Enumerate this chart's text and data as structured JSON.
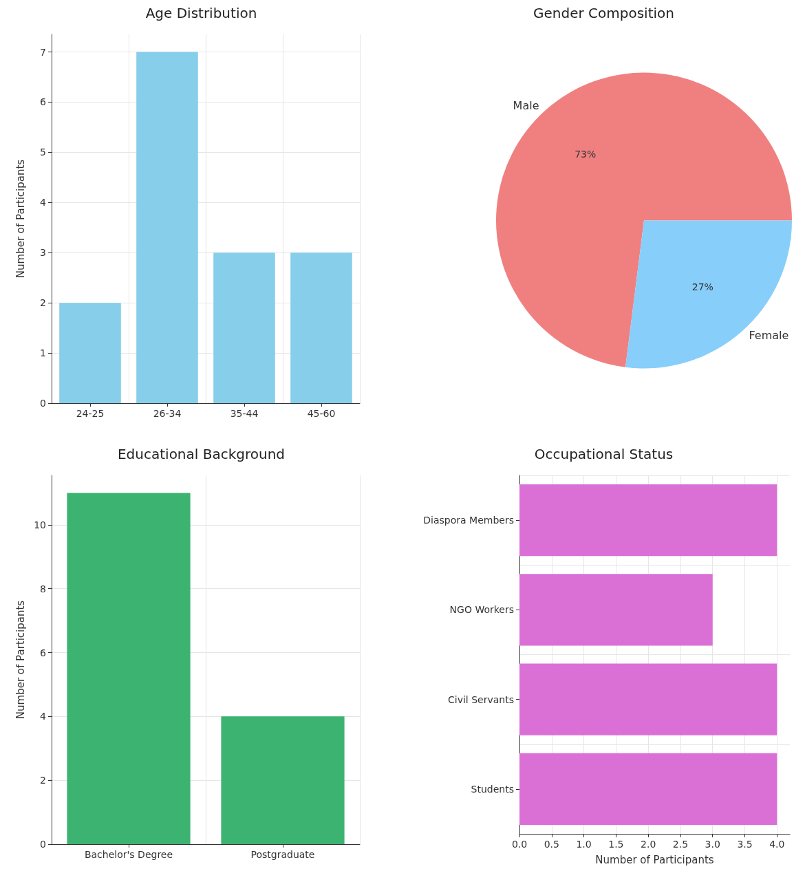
{
  "chart_data": [
    {
      "type": "bar",
      "title": "Age Distribution",
      "ylabel": "Number of Participants",
      "categories": [
        "24-25",
        "26-34",
        "35-44",
        "45-60"
      ],
      "values": [
        2,
        7,
        3,
        3
      ],
      "color": "#87ceeb",
      "ylim": [
        0,
        7.35
      ],
      "yticks": [
        0,
        1,
        2,
        3,
        4,
        5,
        6,
        7
      ],
      "grid": true
    },
    {
      "type": "pie",
      "title": "Gender Composition",
      "categories": [
        "Male",
        "Female"
      ],
      "values": [
        73,
        27
      ],
      "colors": [
        "#f08080",
        "#87cefa"
      ],
      "value_labels": [
        "73%",
        "27%"
      ]
    },
    {
      "type": "bar",
      "title": "Educational Background",
      "ylabel": "Number of Participants",
      "categories": [
        "Bachelor's Degree",
        "Postgraduate"
      ],
      "values": [
        11,
        4
      ],
      "color": "#3cb371",
      "ylim": [
        0,
        11.55
      ],
      "yticks": [
        0,
        2,
        4,
        6,
        8,
        10
      ],
      "grid": true
    },
    {
      "type": "bar",
      "orientation": "horizontal",
      "title": "Occupational Status",
      "xlabel": "Number of Participants",
      "categories": [
        "Diaspora Members",
        "NGO Workers",
        "Civil Servants",
        "Students"
      ],
      "values": [
        4,
        3,
        4,
        4
      ],
      "color": "#da70d6",
      "xlim": [
        0,
        4.2
      ],
      "xticks": [
        {
          "value": 0,
          "label": "0.0"
        },
        {
          "value": 0.5,
          "label": "0.5"
        },
        {
          "value": 1,
          "label": "1.0"
        },
        {
          "value": 1.5,
          "label": "1.5"
        },
        {
          "value": 2,
          "label": "2.0"
        },
        {
          "value": 2.5,
          "label": "2.5"
        },
        {
          "value": 3,
          "label": "3.0"
        },
        {
          "value": 3.5,
          "label": "3.5"
        },
        {
          "value": 4,
          "label": "4.0"
        }
      ],
      "grid": true
    }
  ]
}
